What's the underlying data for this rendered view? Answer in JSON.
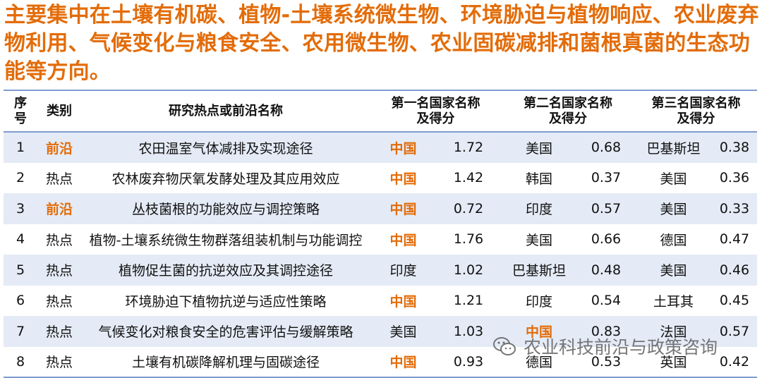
{
  "headline": "主要集中在土壤有机碳、植物-土壤系统微生物、环境胁迫与植物响应、农业废弃物利用、气候变化与粮食安全、农用微生物、农业固碳减排和菌根真菌的生态功能等方向。",
  "table": {
    "headers": {
      "index": "序号",
      "category": "类别",
      "topic": "研究热点或前沿名称",
      "first": "第一名国家名称及得分",
      "second": "第二名国家名称及得分",
      "third": "第三名国家名称及得分"
    },
    "rows": [
      {
        "index": "1",
        "category": "前沿",
        "topic": "农田温室气体减排及实现途径",
        "c1": "中国",
        "s1": "1.72",
        "c2": "美国",
        "s2": "0.68",
        "c3": "巴基斯坦",
        "s3": "0.38"
      },
      {
        "index": "2",
        "category": "热点",
        "topic": "农林废弃物厌氧发酵处理及其应用效应",
        "c1": "中国",
        "s1": "1.42",
        "c2": "韩国",
        "s2": "0.37",
        "c3": "美国",
        "s3": "0.36"
      },
      {
        "index": "3",
        "category": "前沿",
        "topic": "丛枝菌根的功能效应与调控策略",
        "c1": "中国",
        "s1": "0.72",
        "c2": "印度",
        "s2": "0.57",
        "c3": "美国",
        "s3": "0.33"
      },
      {
        "index": "4",
        "category": "热点",
        "topic": "植物-土壤系统微生物群落组装机制与功能调控",
        "c1": "中国",
        "s1": "1.76",
        "c2": "美国",
        "s2": "0.66",
        "c3": "德国",
        "s3": "0.47"
      },
      {
        "index": "5",
        "category": "热点",
        "topic": "植物促生菌的抗逆效应及其调控途径",
        "c1": "印度",
        "s1": "1.02",
        "c2": "巴基斯坦",
        "s2": "0.48",
        "c3": "美国",
        "s3": "0.46"
      },
      {
        "index": "6",
        "category": "热点",
        "topic": "环境胁迫下植物抗逆与适应性策略",
        "c1": "中国",
        "s1": "1.21",
        "c2": "印度",
        "s2": "0.54",
        "c3": "土耳其",
        "s3": "0.45"
      },
      {
        "index": "7",
        "category": "热点",
        "topic": "气候变化对粮食安全的危害评估与缓解策略",
        "c1": "美国",
        "s1": "1.03",
        "c2": "中国",
        "s2": "0.83",
        "c3": "法国",
        "s3": "0.57"
      },
      {
        "index": "8",
        "category": "热点",
        "topic": "土壤有机碳降解机理与固碳途径",
        "c1": "中国",
        "s1": "0.93",
        "c2": "德国",
        "s2": "0.53",
        "c3": "英国",
        "s3": "0.42"
      }
    ]
  },
  "highlight": {
    "category_value": "前沿",
    "country_value": "中国",
    "color": "#e36c09"
  },
  "watermark": {
    "text": "农业科技前沿与政策咨询",
    "icon": "wechat-icon"
  },
  "colors": {
    "accent": "#e36c09",
    "rule": "#7f9bd0",
    "stripe": "#e4ebf6"
  }
}
